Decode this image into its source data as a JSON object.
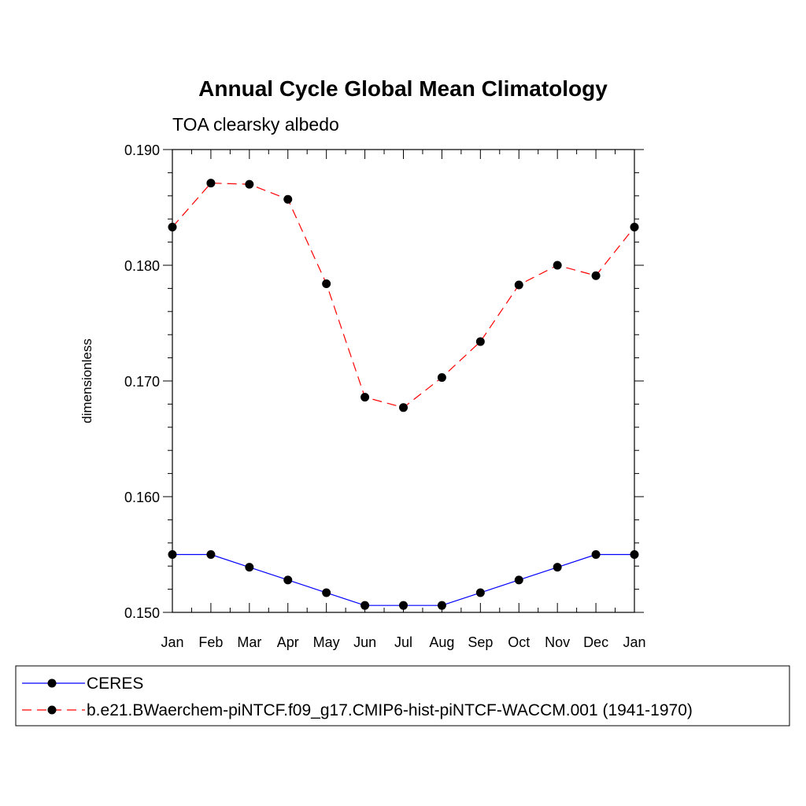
{
  "chart_data": {
    "type": "line",
    "title": "Annual Cycle Global Mean Climatology",
    "subtitle": "TOA clearsky albedo",
    "ylabel": "dimensionless",
    "xlabel": "",
    "categories": [
      "Jan",
      "Feb",
      "Mar",
      "Apr",
      "May",
      "Jun",
      "Jul",
      "Aug",
      "Sep",
      "Oct",
      "Nov",
      "Dec",
      "Jan"
    ],
    "ylim": [
      0.15,
      0.19
    ],
    "yticks": [
      "0.150",
      "0.160",
      "0.170",
      "0.180",
      "0.190"
    ],
    "series": [
      {
        "name": "CERES",
        "color": "#0000ff",
        "dash": "solid",
        "values": [
          0.155,
          0.155,
          0.1539,
          0.1528,
          0.1517,
          0.1506,
          0.1506,
          0.1506,
          0.1517,
          0.1528,
          0.1539,
          0.155,
          0.155
        ]
      },
      {
        "name": "b.e21.BWaerchem-piNTCF.f09_g17.CMIP6-hist-piNTCF-WACCM.001 (1941-1970)",
        "color": "#ff0000",
        "dash": "dashed",
        "values": [
          0.1833,
          0.1871,
          0.187,
          0.1857,
          0.1784,
          0.1686,
          0.1677,
          0.1703,
          0.1734,
          0.1783,
          0.18,
          0.1791,
          0.1833
        ]
      }
    ],
    "legend_position": "bottom",
    "grid": false
  }
}
